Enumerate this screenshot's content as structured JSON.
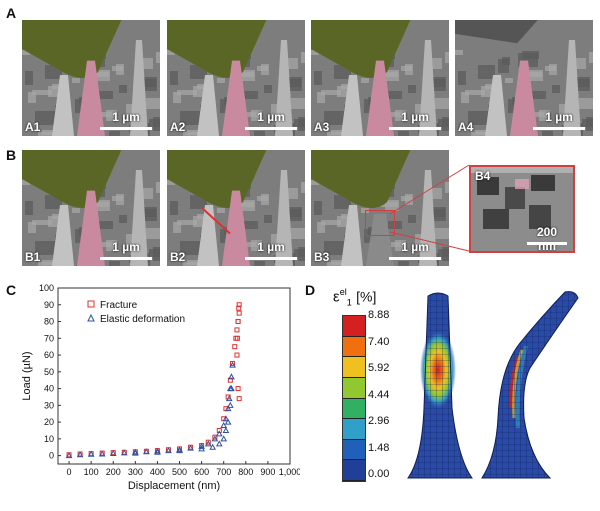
{
  "figure": {
    "panel_labels": {
      "A": "A",
      "B": "B",
      "C": "C",
      "D": "D"
    },
    "row_a": [
      {
        "label": "A1",
        "scale": "1 µm"
      },
      {
        "label": "A2",
        "scale": "1 µm"
      },
      {
        "label": "A3",
        "scale": "1 µm"
      },
      {
        "label": "A4",
        "scale": "1 µm"
      }
    ],
    "row_b": [
      {
        "label": "B1",
        "scale": "1 µm"
      },
      {
        "label": "B2",
        "scale": "1 µm"
      },
      {
        "label": "B3",
        "scale": "1 µm"
      },
      {
        "label": "B4",
        "scale": "200 nm"
      }
    ],
    "colors": {
      "pillar": "#c98aa0",
      "indenter": "#8a9a3a",
      "sem_bg": "#7a7a7a",
      "fracture": "#e03030",
      "elastic": "#3050a0"
    }
  },
  "chart_data": {
    "type": "scatter",
    "xlabel": "Displacement (nm)",
    "ylabel": "Load (µN)",
    "xlim": [
      -50,
      1000
    ],
    "ylim": [
      -5,
      100
    ],
    "xticks": [
      0,
      100,
      200,
      300,
      400,
      500,
      600,
      700,
      800,
      900,
      "1,000"
    ],
    "yticks": [
      0,
      10,
      20,
      30,
      40,
      50,
      60,
      70,
      80,
      90,
      100
    ],
    "legend_position": "top-left",
    "series": [
      {
        "name": "Fracture",
        "marker": "square",
        "color": "#e03030",
        "x": [
          0,
          50,
          100,
          150,
          200,
          250,
          300,
          350,
          400,
          450,
          500,
          550,
          600,
          630,
          660,
          680,
          700,
          710,
          720,
          730,
          740,
          750,
          755,
          760,
          765,
          770,
          770,
          768,
          765,
          762,
          760,
          765,
          770
        ],
        "y": [
          0.5,
          1,
          1.2,
          1.5,
          1.8,
          2,
          2.3,
          2.6,
          3,
          3.5,
          4,
          5,
          6,
          8,
          11,
          15,
          22,
          28,
          35,
          45,
          55,
          65,
          70,
          75,
          80,
          85,
          90,
          88,
          80,
          70,
          60,
          40,
          34
        ]
      },
      {
        "name": "Elastic deformation",
        "marker": "triangle",
        "color": "#3050a0",
        "x": [
          0,
          50,
          100,
          150,
          200,
          250,
          300,
          350,
          400,
          450,
          500,
          550,
          600,
          630,
          660,
          680,
          700,
          710,
          720,
          725,
          730,
          735,
          740,
          735,
          730,
          720,
          710,
          700,
          680,
          650,
          600,
          500,
          400,
          300
        ],
        "y": [
          0,
          0.5,
          0.8,
          1,
          1.3,
          1.6,
          2,
          2.3,
          2.7,
          3,
          3.5,
          4.5,
          5.5,
          7,
          10,
          13,
          18,
          22,
          28,
          34,
          40,
          47,
          54,
          40,
          30,
          20,
          15,
          10,
          7,
          5,
          4,
          3,
          2,
          1.5
        ]
      }
    ]
  },
  "colorbar": {
    "title": "ε",
    "title_sup": "el",
    "title_sub": "1",
    "unit": "[%]",
    "ticks": [
      "8.88",
      "7.40",
      "5.92",
      "4.44",
      "2.96",
      "1.48",
      "0.00"
    ],
    "colors": [
      "#d42020",
      "#f07010",
      "#f0c020",
      "#90c830",
      "#30b060",
      "#30a0c8",
      "#2060b8",
      "#1f3f98"
    ]
  }
}
